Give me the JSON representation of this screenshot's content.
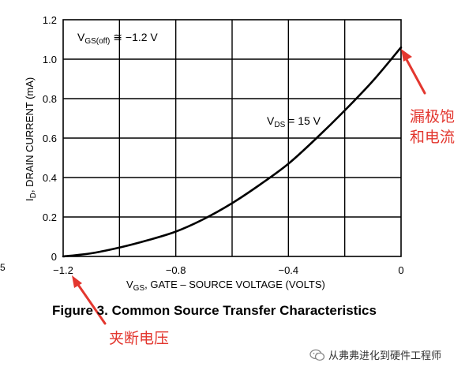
{
  "chart_data": {
    "type": "line",
    "title": "",
    "xlabel_main": "V",
    "xlabel_sub": "GS",
    "xlabel_rest": ", GATE – SOURCE VOLTAGE (VOLTS)",
    "ylabel_main": "I",
    "ylabel_sub": "D",
    "ylabel_rest": ", DRAIN CURRENT (mA)",
    "xlim": [
      -1.2,
      0
    ],
    "ylim": [
      0,
      1.2
    ],
    "x_tick_labels": [
      "−1.2",
      "−0.8",
      "−0.4",
      "0"
    ],
    "x_tick_values": [
      -1.2,
      -0.8,
      -0.4,
      0
    ],
    "y_tick_labels": [
      "0",
      "0.2",
      "0.4",
      "0.6",
      "0.8",
      "1.0",
      "1.2"
    ],
    "y_tick_values": [
      0,
      0.2,
      0.4,
      0.6,
      0.8,
      1.0,
      1.2
    ],
    "grid": true,
    "series": [
      {
        "x": [
          -1.2,
          -1.1,
          -1.0,
          -0.9,
          -0.8,
          -0.7,
          -0.6,
          -0.5,
          -0.4,
          -0.3,
          -0.2,
          -0.1,
          0.0
        ],
        "y": [
          0.0,
          0.016,
          0.045,
          0.082,
          0.126,
          0.19,
          0.27,
          0.365,
          0.47,
          0.6,
          0.74,
          0.89,
          1.06
        ]
      }
    ],
    "annotations": {
      "vgs_off": {
        "main": "V",
        "sub": "GS(off)",
        "rest": " ≅ −1.2 V"
      },
      "vds": {
        "main": "V",
        "sub": "DS",
        "rest": " = 15 V"
      }
    }
  },
  "edge_label": "5",
  "caption": "Figure 3. Common Source Transfer Characteristics",
  "red_annotations": {
    "drain_saturation": "漏极饱和电流",
    "pinch_off": "夹断电压",
    "color": "#e3372f"
  },
  "watermark": "从弗弗进化到硬件工程师"
}
